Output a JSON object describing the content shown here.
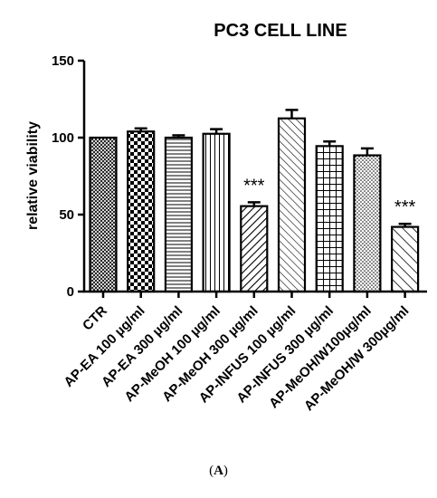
{
  "panel_label_parts": [
    "(",
    "A",
    ")"
  ],
  "chart_data": {
    "type": "bar",
    "title": "PC3 CELL LINE",
    "xlabel": "",
    "ylabel": "relative viability",
    "ylim": [
      0,
      150
    ],
    "yticks": [
      0,
      50,
      100,
      150
    ],
    "categories": [
      "CTR",
      "AP-EA 100 µg/ml",
      "AP-EA 300 µg/ml",
      "AP-MeOH 100 µg/ml",
      "AP-MeOH 300 µg/ml",
      "AP-INFUS 100 µg/ml",
      "AP-INFUS 300 µg/ml",
      "AP-MeOH/W100µg/ml",
      "AP-MeOH/W 300µg/ml"
    ],
    "values": [
      100,
      104,
      100,
      102.5,
      55.5,
      112.5,
      94.5,
      88.5,
      42
    ],
    "errors": [
      0,
      2,
      1.5,
      3,
      2.5,
      5.5,
      3,
      4.5,
      2
    ],
    "annotations": [
      "",
      "",
      "",
      "",
      "***",
      "",
      "",
      "",
      "***"
    ],
    "patterns": [
      "crosshatch-fine",
      "checker",
      "hlines",
      "vlines",
      "diag-down",
      "diag-up",
      "grid",
      "dots",
      "diag-down-wide"
    ]
  }
}
